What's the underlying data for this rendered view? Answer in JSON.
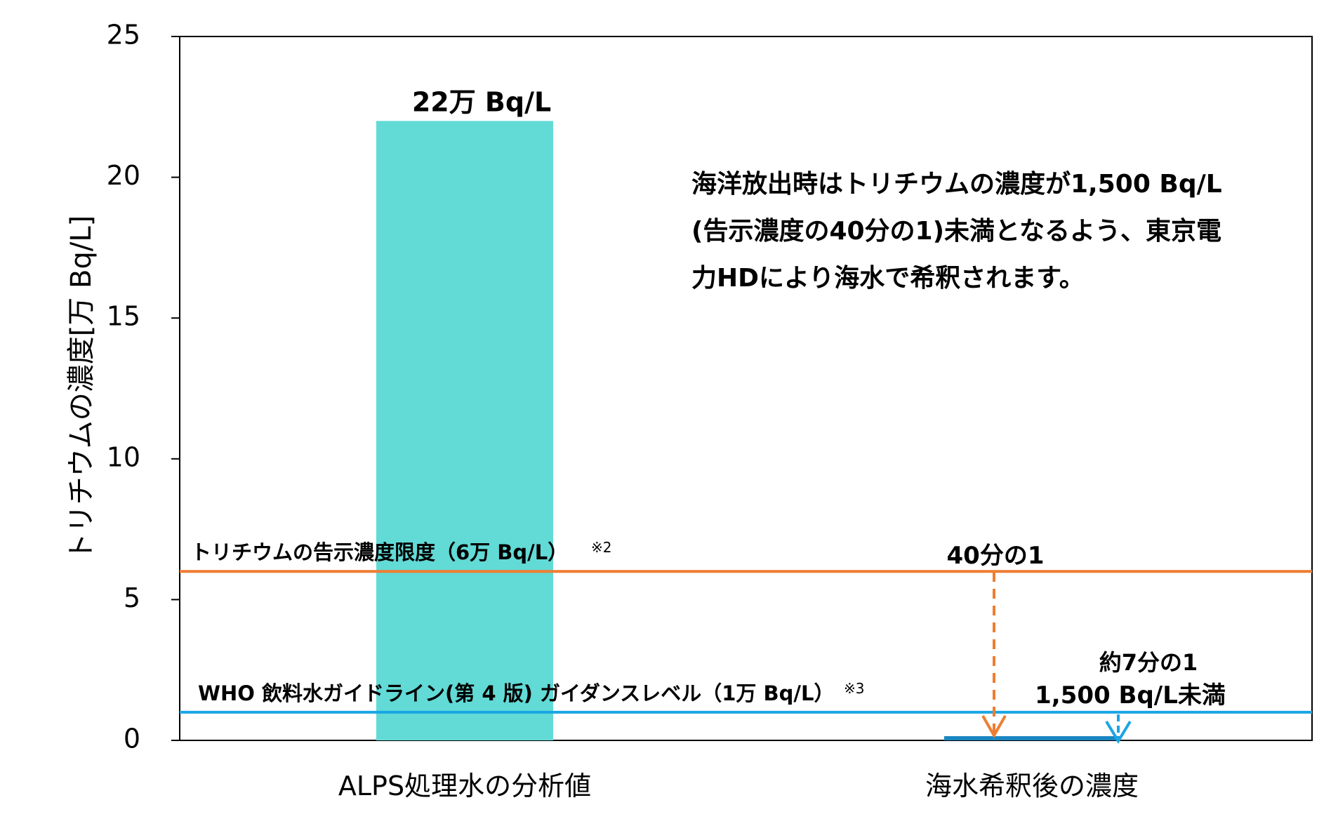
{
  "chart_data": {
    "type": "bar",
    "categories": [
      "ALPS処理水の分析値",
      "海水希釈後の濃度"
    ],
    "values": [
      22,
      0.15
    ],
    "ylabel": "トリチウムの濃度[万 Bq/L]",
    "ylim": [
      0,
      25
    ],
    "yticks": [
      0,
      5,
      10,
      15,
      20,
      25
    ],
    "grid": false,
    "bar_colors": [
      "#62dad6",
      "#1a86c1"
    ],
    "bar_labels": [
      "22万 Bq/L",
      ""
    ],
    "reference_lines": [
      {
        "value": 6,
        "label": "トリチウムの告示濃度限度（6万 Bq/L）",
        "note": "※2",
        "color": "#ee7d31"
      },
      {
        "value": 1,
        "label": "WHO 飲料水ガイドライン(第 4 版) ガイダンスレベル（1万 Bq/L）",
        "note": "※3",
        "color": "#1aa6e4"
      }
    ],
    "annotations": {
      "note_lines": [
        "海洋放出時はトリチウムの濃度が1,500 Bq/L",
        "(告示濃度の40分の1)未満となるよう、東京電",
        "力HDにより海水で希釈されます。"
      ],
      "ratio_orange": "40分の1",
      "ratio_blue": "約7分の1",
      "result": "1,500 Bq/L未満"
    }
  }
}
